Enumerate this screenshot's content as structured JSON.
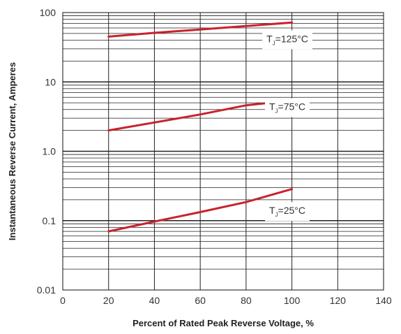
{
  "chart_data": {
    "type": "line",
    "xlabel": "Percent of Rated Peak Reverse Voltage, %",
    "ylabel": "Instantaneous Reverse Current, Amperes",
    "xlim": [
      0,
      140
    ],
    "ylim": [
      0.01,
      100
    ],
    "y_scale": "log",
    "x_ticks": [
      0,
      20,
      40,
      60,
      80,
      100,
      120,
      140
    ],
    "y_ticks": [
      {
        "value": 0.01,
        "label": "0.01"
      },
      {
        "value": 0.1,
        "label": "0.1"
      },
      {
        "value": 1,
        "label": "1.0"
      },
      {
        "value": 10,
        "label": "10"
      },
      {
        "value": 100,
        "label": "100"
      }
    ],
    "grid": true,
    "series_color": "#c8232c",
    "series": [
      {
        "points": [
          [
            20,
            45
          ],
          [
            40,
            51
          ],
          [
            60,
            57
          ],
          [
            80,
            64
          ],
          [
            100,
            72
          ]
        ],
        "annotation": {
          "main": "T",
          "sub": "J",
          "rest": "=125°C",
          "x": 98,
          "y": 42
        }
      },
      {
        "points": [
          [
            20,
            2.0
          ],
          [
            40,
            2.6
          ],
          [
            60,
            3.4
          ],
          [
            80,
            4.6
          ],
          [
            100,
            5.4
          ]
        ],
        "annotation": {
          "main": "T",
          "sub": "J",
          "rest": "=75°C",
          "x": 98,
          "y": 4.4
        }
      },
      {
        "points": [
          [
            20,
            0.07
          ],
          [
            40,
            0.097
          ],
          [
            60,
            0.133
          ],
          [
            80,
            0.185
          ],
          [
            100,
            0.285
          ]
        ],
        "annotation": {
          "main": "T",
          "sub": "J",
          "rest": "=25°C",
          "x": 98,
          "y": 0.14
        }
      }
    ]
  }
}
